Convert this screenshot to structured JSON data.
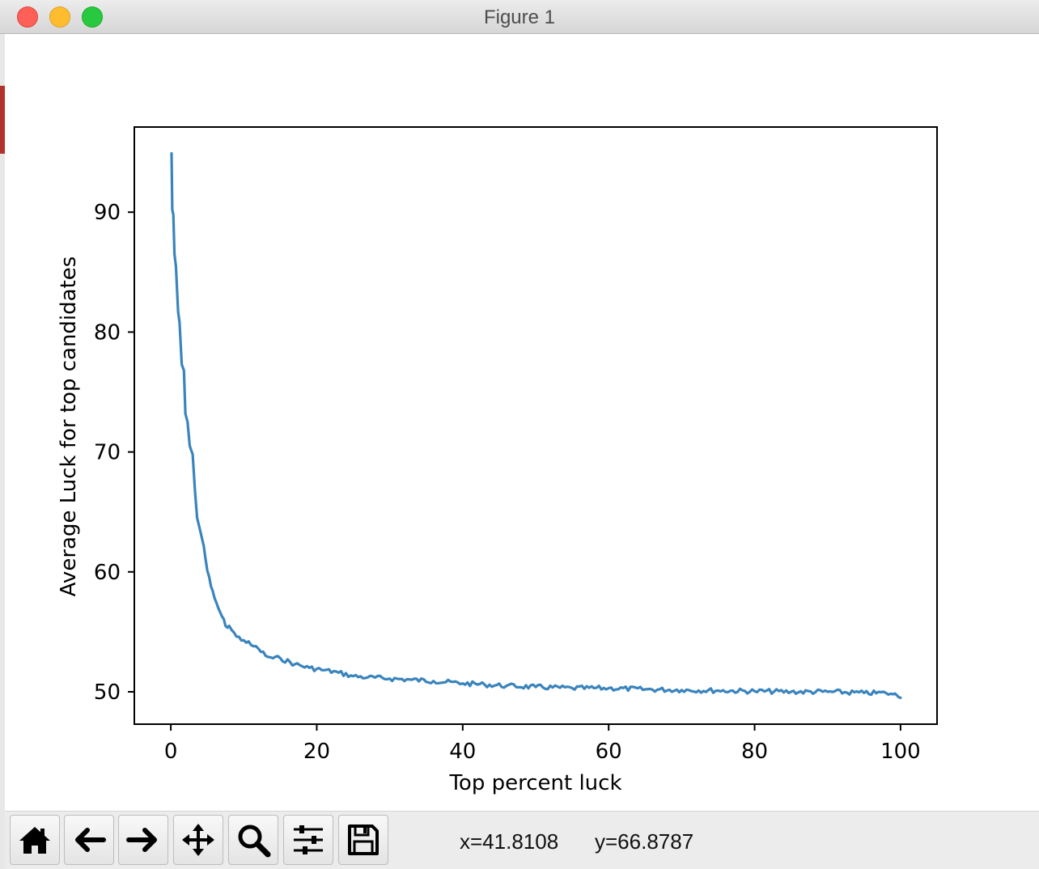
{
  "window": {
    "title": "Figure 1"
  },
  "toolbar": {
    "buttons": [
      {
        "name": "home-icon"
      },
      {
        "name": "back-icon"
      },
      {
        "name": "forward-icon"
      },
      {
        "name": "pan-icon"
      },
      {
        "name": "zoom-icon"
      },
      {
        "name": "configure-subplots-icon"
      },
      {
        "name": "save-icon"
      }
    ],
    "x_readout": "x=41.8108",
    "y_readout": "y=66.8787"
  },
  "chart_data": {
    "type": "line",
    "title": "",
    "xlabel": "Top percent luck",
    "ylabel": "Average Luck for top candidates",
    "xlim": [
      -5,
      105
    ],
    "ylim": [
      47.3,
      97.1
    ],
    "xticks": [
      0,
      20,
      40,
      60,
      80,
      100
    ],
    "yticks": [
      50,
      60,
      70,
      80,
      90
    ],
    "grid": false,
    "color": "#3a84bd",
    "x": [
      0.1,
      0.2,
      0.35,
      0.5,
      0.7,
      1,
      1.2,
      1.5,
      1.8,
      2,
      2.3,
      2.6,
      3,
      3.3,
      3.6,
      4,
      4.5,
      5,
      5.5,
      6,
      6.5,
      7,
      7.5,
      8,
      9,
      10,
      11,
      12,
      13,
      14,
      15,
      17,
      19,
      21,
      23,
      25,
      27,
      30,
      33,
      36,
      40,
      43,
      46,
      50,
      55,
      60,
      65,
      70,
      75,
      80,
      85,
      90,
      95,
      98,
      99,
      99.5,
      100
    ],
    "y": [
      94.9,
      90.2,
      89.8,
      86.5,
      85.5,
      81.7,
      80.8,
      77.3,
      76.8,
      73.2,
      72.5,
      70.5,
      69.8,
      66.8,
      64.5,
      63.5,
      62.2,
      60.1,
      58.8,
      57.8,
      57,
      56.3,
      55.5,
      55.5,
      54.6,
      54.3,
      53.9,
      53.6,
      53,
      52.8,
      52.8,
      52.3,
      52,
      51.8,
      51.6,
      51.3,
      51.2,
      51.1,
      51,
      50.9,
      50.7,
      50.6,
      50.5,
      50.4,
      50.3,
      50.3,
      50.2,
      50.15,
      50.1,
      50.05,
      50,
      50,
      49.9,
      49.9,
      49.8,
      49.7,
      49.5
    ]
  }
}
